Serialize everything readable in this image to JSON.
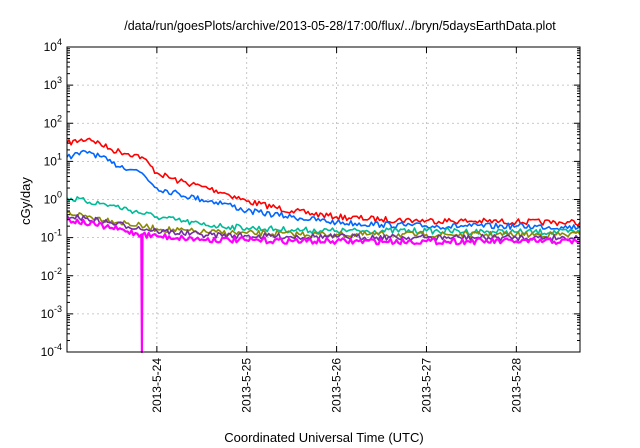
{
  "chart_data": {
    "type": "line",
    "title": "/data/run/goesPlots/archive/2013-05-28/17:00/flux/../bryn/5daysEarthData.plot",
    "xlabel": "Coordinated Universal Time (UTC)",
    "ylabel": "cGy/day",
    "yscale": "log",
    "ylim": [
      0.0001,
      10000
    ],
    "y_ticks": [
      {
        "value": 0.0001,
        "base": "10",
        "exp": "-4"
      },
      {
        "value": 0.001,
        "base": "10",
        "exp": "-3"
      },
      {
        "value": 0.01,
        "base": "10",
        "exp": "-2"
      },
      {
        "value": 0.1,
        "base": "10",
        "exp": "-1"
      },
      {
        "value": 1,
        "base": "10",
        "exp": "0"
      },
      {
        "value": 10,
        "base": "10",
        "exp": "1"
      },
      {
        "value": 100,
        "base": "10",
        "exp": "2"
      },
      {
        "value": 1000,
        "base": "10",
        "exp": "3"
      },
      {
        "value": 10000,
        "base": "10",
        "exp": "4"
      }
    ],
    "xlim": [
      "2013-05-23T00:00",
      "2013-05-28T17:00"
    ],
    "x_ticks": [
      "2013-5-24",
      "2013-5-25",
      "2013-5-26",
      "2013-5-27",
      "2013-5-28"
    ],
    "grid": true,
    "legend": "none",
    "series": [
      {
        "color": "#ff0000",
        "x": [
          "2013-05-23T00:00",
          "2013-05-23T06:00",
          "2013-05-23T12:00",
          "2013-05-23T18:00",
          "2013-05-23T20:00",
          "2013-05-24T00:00",
          "2013-05-24T06:00",
          "2013-05-24T12:00",
          "2013-05-24T18:00",
          "2013-05-25T00:00",
          "2013-05-25T12:00",
          "2013-05-26T00:00",
          "2013-05-26T12:00",
          "2013-05-27T00:00",
          "2013-05-27T12:00",
          "2013-05-28T00:00",
          "2013-05-28T12:00",
          "2013-05-28T17:00"
        ],
        "y": [
          30,
          40,
          20,
          15,
          13,
          5,
          3,
          2.2,
          1.5,
          0.9,
          0.5,
          0.35,
          0.3,
          0.28,
          0.27,
          0.26,
          0.25,
          0.25
        ]
      },
      {
        "color": "#0066ff",
        "x": [
          "2013-05-23T00:00",
          "2013-05-23T06:00",
          "2013-05-23T12:00",
          "2013-05-23T18:00",
          "2013-05-23T20:00",
          "2013-05-24T00:00",
          "2013-05-24T06:00",
          "2013-05-24T12:00",
          "2013-05-24T18:00",
          "2013-05-25T00:00",
          "2013-05-25T12:00",
          "2013-05-26T00:00",
          "2013-05-26T12:00",
          "2013-05-27T00:00",
          "2013-05-27T12:00",
          "2013-05-28T00:00",
          "2013-05-28T12:00",
          "2013-05-28T17:00"
        ],
        "y": [
          13,
          18,
          9,
          6,
          5,
          2,
          1.4,
          1.0,
          0.8,
          0.5,
          0.35,
          0.25,
          0.22,
          0.2,
          0.2,
          0.2,
          0.19,
          0.19
        ]
      },
      {
        "color": "#00bb99",
        "x": [
          "2013-05-23T00:00",
          "2013-05-23T12:00",
          "2013-05-24T00:00",
          "2013-05-24T12:00",
          "2013-05-25T00:00",
          "2013-05-25T12:00",
          "2013-05-26T00:00",
          "2013-05-27T00:00",
          "2013-05-28T00:00",
          "2013-05-28T17:00"
        ],
        "y": [
          1.1,
          0.7,
          0.35,
          0.22,
          0.18,
          0.16,
          0.15,
          0.15,
          0.14,
          0.14
        ]
      },
      {
        "color": "#8a8a00",
        "x": [
          "2013-05-23T00:00",
          "2013-05-23T12:00",
          "2013-05-24T00:00",
          "2013-05-24T12:00",
          "2013-05-25T00:00",
          "2013-05-26T00:00",
          "2013-05-27T00:00",
          "2013-05-28T00:00",
          "2013-05-28T17:00"
        ],
        "y": [
          0.45,
          0.28,
          0.17,
          0.14,
          0.13,
          0.12,
          0.12,
          0.12,
          0.12
        ]
      },
      {
        "color": "#7030a0",
        "x": [
          "2013-05-23T00:00",
          "2013-05-23T12:00",
          "2013-05-24T00:00",
          "2013-05-24T12:00",
          "2013-05-25T00:00",
          "2013-05-26T00:00",
          "2013-05-27T00:00",
          "2013-05-28T00:00",
          "2013-05-28T17:00"
        ],
        "y": [
          0.38,
          0.24,
          0.15,
          0.12,
          0.11,
          0.105,
          0.1,
          0.1,
          0.1
        ]
      },
      {
        "color": "#ff00ff",
        "x": [
          "2013-05-23T00:00",
          "2013-05-23T12:00",
          "2013-05-23T19:50",
          "2013-05-23T20:00",
          "2013-05-23T20:10",
          "2013-05-24T00:00",
          "2013-05-24T12:00",
          "2013-05-25T00:00",
          "2013-05-26T00:00",
          "2013-05-27T00:00",
          "2013-05-28T00:00",
          "2013-05-28T17:00"
        ],
        "y": [
          0.3,
          0.18,
          0.12,
          0.0001,
          0.12,
          0.11,
          0.09,
          0.085,
          0.08,
          0.08,
          0.08,
          0.08
        ]
      }
    ]
  }
}
